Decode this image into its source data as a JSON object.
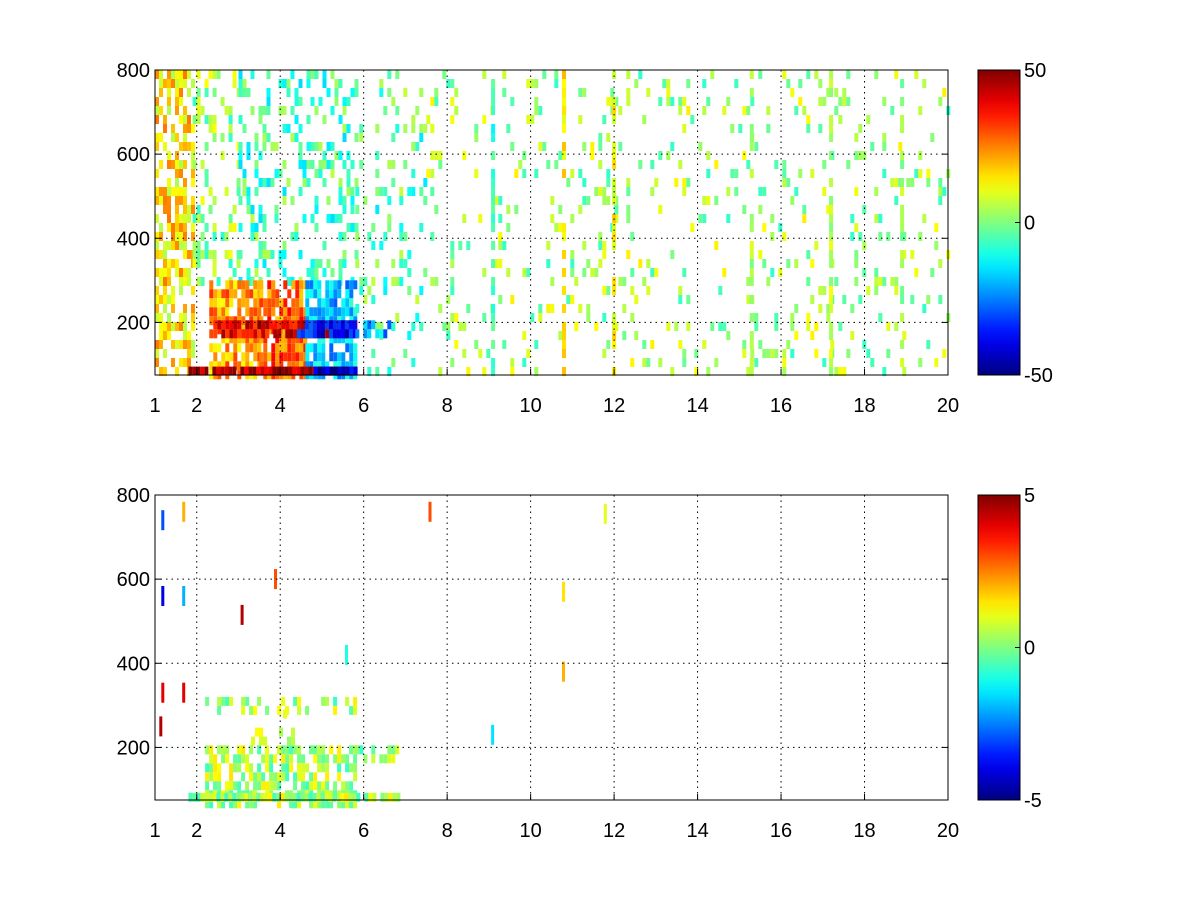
{
  "chart_data": [
    {
      "type": "heatmap",
      "title": "",
      "xlabel": "",
      "ylabel": "",
      "xlim": [
        1,
        20
      ],
      "ylim": [
        75,
        800
      ],
      "x_ticks": [
        "1",
        "2",
        "4",
        "6",
        "8",
        "10",
        "12",
        "14",
        "16",
        "18",
        "20"
      ],
      "y_ticks": [
        "200",
        "400",
        "600",
        "800"
      ],
      "grid": true,
      "colormap": "jet",
      "colorbar": {
        "range": [
          -50,
          50
        ],
        "ticks": [
          "-50",
          "0",
          "50"
        ],
        "placement": "right"
      },
      "regions": [
        {
          "x": [
            1.0,
            1.9
          ],
          "y": [
            75,
            800
          ],
          "value": 15,
          "density": 0.55
        },
        {
          "x": [
            1.9,
            3.0
          ],
          "y": [
            300,
            800
          ],
          "value": 2,
          "density": 0.25
        },
        {
          "x": [
            3.0,
            5.8
          ],
          "y": [
            300,
            800
          ],
          "value": -5,
          "density": 0.3
        },
        {
          "x": [
            2.3,
            3.5
          ],
          "y": [
            75,
            300
          ],
          "value": 22,
          "density": 0.75
        },
        {
          "x": [
            3.5,
            4.6
          ],
          "y": [
            75,
            300
          ],
          "value": 28,
          "density": 0.85
        },
        {
          "x": [
            4.6,
            5.8
          ],
          "y": [
            75,
            300
          ],
          "value": -18,
          "density": 0.85
        },
        {
          "x": [
            2.3,
            5.8
          ],
          "y": [
            180,
            205
          ],
          "value": 40,
          "density": 0.9
        },
        {
          "x": [
            4.4,
            5.8
          ],
          "y": [
            180,
            205
          ],
          "value": -35,
          "density": 0.9
        },
        {
          "x": [
            1.8,
            5.8
          ],
          "y": [
            75,
            95
          ],
          "value": 45,
          "density": 0.95
        },
        {
          "x": [
            4.8,
            5.8
          ],
          "y": [
            75,
            95
          ],
          "value": -45,
          "density": 0.95
        },
        {
          "x": [
            5.8,
            7.5
          ],
          "y": [
            75,
            800
          ],
          "value": -4,
          "density": 0.18
        },
        {
          "x": [
            5.8,
            6.6
          ],
          "y": [
            180,
            205
          ],
          "value": -20,
          "density": 0.8
        },
        {
          "x": [
            7.5,
            20.0
          ],
          "y": [
            75,
            800
          ],
          "value": 3,
          "density": 0.12
        }
      ],
      "stripes": [
        {
          "x": 9.1,
          "value": -8
        },
        {
          "x": 10.8,
          "value": 15
        },
        {
          "x": 12.0,
          "value": 12
        },
        {
          "x": 15.3,
          "value": 4
        },
        {
          "x": 17.2,
          "value": 6
        },
        {
          "x": 18.9,
          "value": 3
        }
      ]
    },
    {
      "type": "heatmap",
      "title": "",
      "xlabel": "",
      "ylabel": "",
      "xlim": [
        1,
        20
      ],
      "ylim": [
        75,
        800
      ],
      "x_ticks": [
        "1",
        "2",
        "4",
        "6",
        "8",
        "10",
        "12",
        "14",
        "16",
        "18",
        "20"
      ],
      "y_ticks": [
        "200",
        "400",
        "600",
        "800"
      ],
      "grid": true,
      "colormap": "jet",
      "colorbar": {
        "range": [
          -5,
          5
        ],
        "ticks": [
          "-5",
          "0",
          "5"
        ],
        "placement": "right"
      },
      "regions": [
        {
          "x": [
            2.2,
            5.8
          ],
          "y": [
            75,
            205
          ],
          "value": 0.4,
          "density": 0.7
        },
        {
          "x": [
            2.2,
            5.8
          ],
          "y": [
            280,
            320
          ],
          "value": 0.4,
          "density": 0.35
        },
        {
          "x": [
            5.8,
            6.8
          ],
          "y": [
            180,
            205
          ],
          "value": 0.4,
          "density": 0.6
        },
        {
          "x": [
            1.8,
            6.8
          ],
          "y": [
            75,
            92
          ],
          "value": 0.4,
          "density": 0.9
        },
        {
          "x": [
            3.3,
            4.3
          ],
          "y": [
            205,
            290
          ],
          "value": 0.4,
          "density": 0.3
        }
      ],
      "points": [
        {
          "x": 1.2,
          "y": 740,
          "value": -3
        },
        {
          "x": 1.2,
          "y": 560,
          "value": -4
        },
        {
          "x": 1.2,
          "y": 330,
          "value": 4
        },
        {
          "x": 1.15,
          "y": 250,
          "value": 4.5
        },
        {
          "x": 1.7,
          "y": 760,
          "value": 2
        },
        {
          "x": 1.7,
          "y": 560,
          "value": -2
        },
        {
          "x": 1.7,
          "y": 330,
          "value": 4
        },
        {
          "x": 3.1,
          "y": 515,
          "value": 4.5
        },
        {
          "x": 3.9,
          "y": 600,
          "value": 3
        },
        {
          "x": 5.6,
          "y": 420,
          "value": -1
        },
        {
          "x": 7.6,
          "y": 760,
          "value": 3
        },
        {
          "x": 9.1,
          "y": 230,
          "value": -1.5
        },
        {
          "x": 10.8,
          "y": 570,
          "value": 1.5
        },
        {
          "x": 10.8,
          "y": 380,
          "value": 2
        },
        {
          "x": 11.8,
          "y": 755,
          "value": 1
        }
      ]
    }
  ]
}
